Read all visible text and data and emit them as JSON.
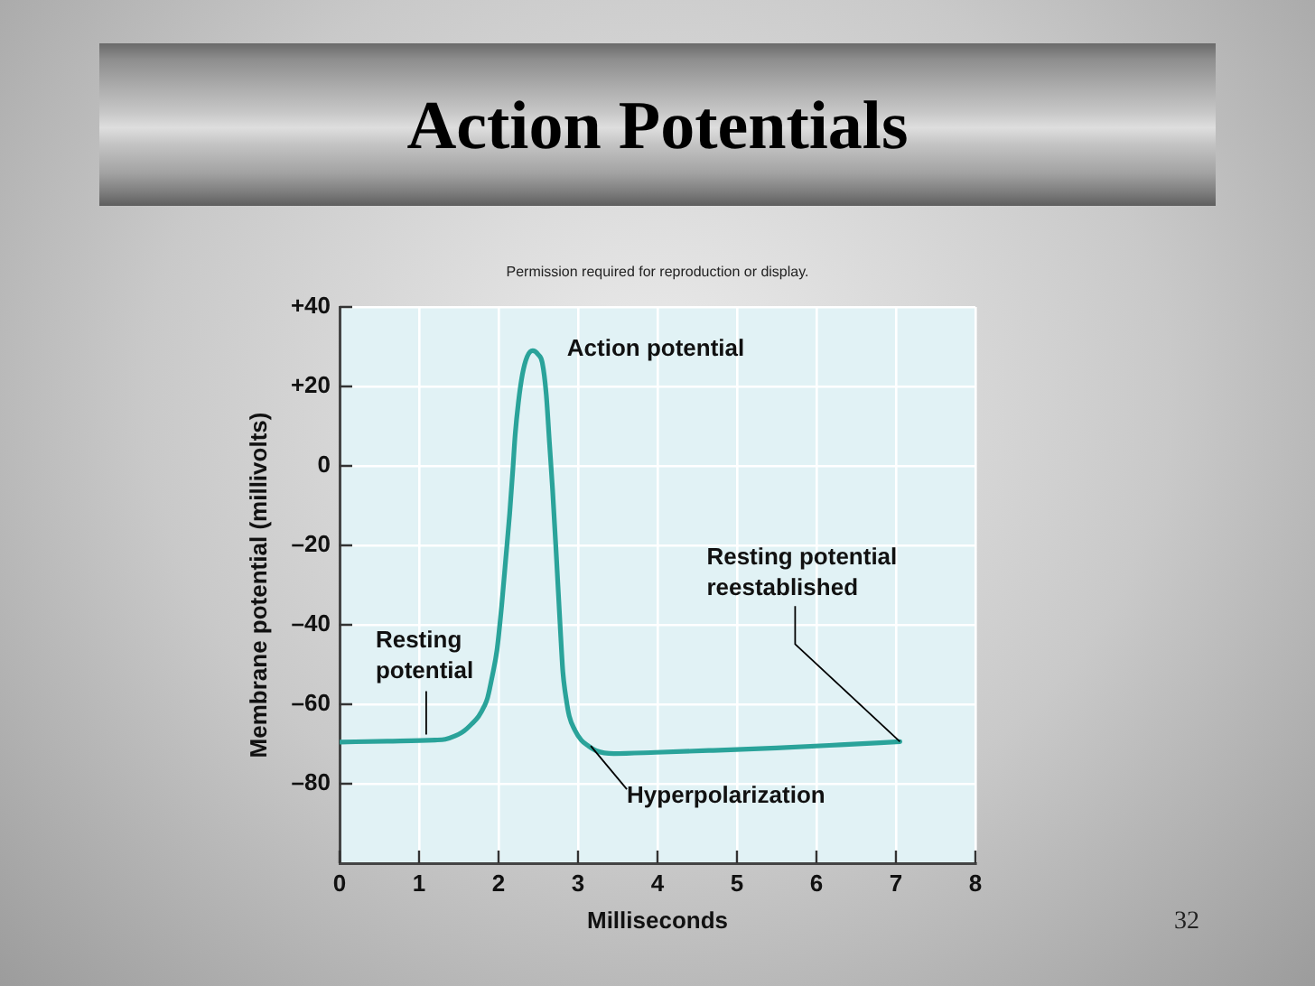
{
  "chart_data": {
    "type": "line",
    "title": "Action Potentials",
    "xlabel": "Milliseconds",
    "ylabel": "Membrane potential (millivolts)",
    "x": [
      0,
      0.6,
      1.2,
      1.33,
      1.45,
      1.56,
      1.66,
      1.75,
      1.82,
      1.86,
      1.92,
      1.98,
      2.04,
      2.09,
      2.14,
      2.18,
      2.21,
      2.25,
      2.3,
      2.36,
      2.43,
      2.5,
      2.55,
      2.6,
      2.64,
      2.68,
      2.73,
      2.78,
      2.81,
      2.85,
      2.89,
      2.96,
      3.04,
      3.13,
      3.23,
      3.45,
      3.98,
      4.7,
      5.5,
      6.3,
      7.05
    ],
    "values": [
      -69.5,
      -69.3,
      -69,
      -68.8,
      -68,
      -66.8,
      -65,
      -63,
      -60.5,
      -58.5,
      -53,
      -46.4,
      -35,
      -23.6,
      -12,
      -0.9,
      8,
      16,
      23,
      27.5,
      29,
      28,
      26,
      18,
      6,
      -6,
      -23.6,
      -42,
      -52,
      -58.5,
      -63,
      -66.5,
      -69,
      -70.5,
      -71.7,
      -72.4,
      -72.1,
      -71.6,
      -71,
      -70.2,
      -69.4
    ],
    "color": "#2aa39a",
    "marker": "none",
    "grid": true,
    "xlim": [
      0,
      8
    ],
    "xticks": [
      0,
      1,
      2,
      3,
      4,
      5,
      6,
      7,
      8
    ],
    "ylim": [
      -100,
      40
    ],
    "yticks": [
      {
        "value": 40,
        "label": "+40"
      },
      {
        "value": 20,
        "label": "+20"
      },
      0,
      {
        "value": -20,
        "label": "–20"
      },
      {
        "value": -40,
        "label": "–40"
      },
      {
        "value": -60,
        "label": "–60"
      },
      {
        "value": -80,
        "label": "–80"
      }
    ],
    "annotations": [
      {
        "text": "Action potential",
        "x": 2.43,
        "y": 29
      },
      {
        "text": "Resting potential",
        "x": 1.09,
        "y": -68.5
      },
      {
        "text": "Hyperpolarization",
        "x": 3.16,
        "y": -70.5
      },
      {
        "text": "Resting potential reestablished",
        "x": 7.05,
        "y": -69.4
      },
      "Permission required for reproduction or display.",
      "32"
    ]
  }
}
